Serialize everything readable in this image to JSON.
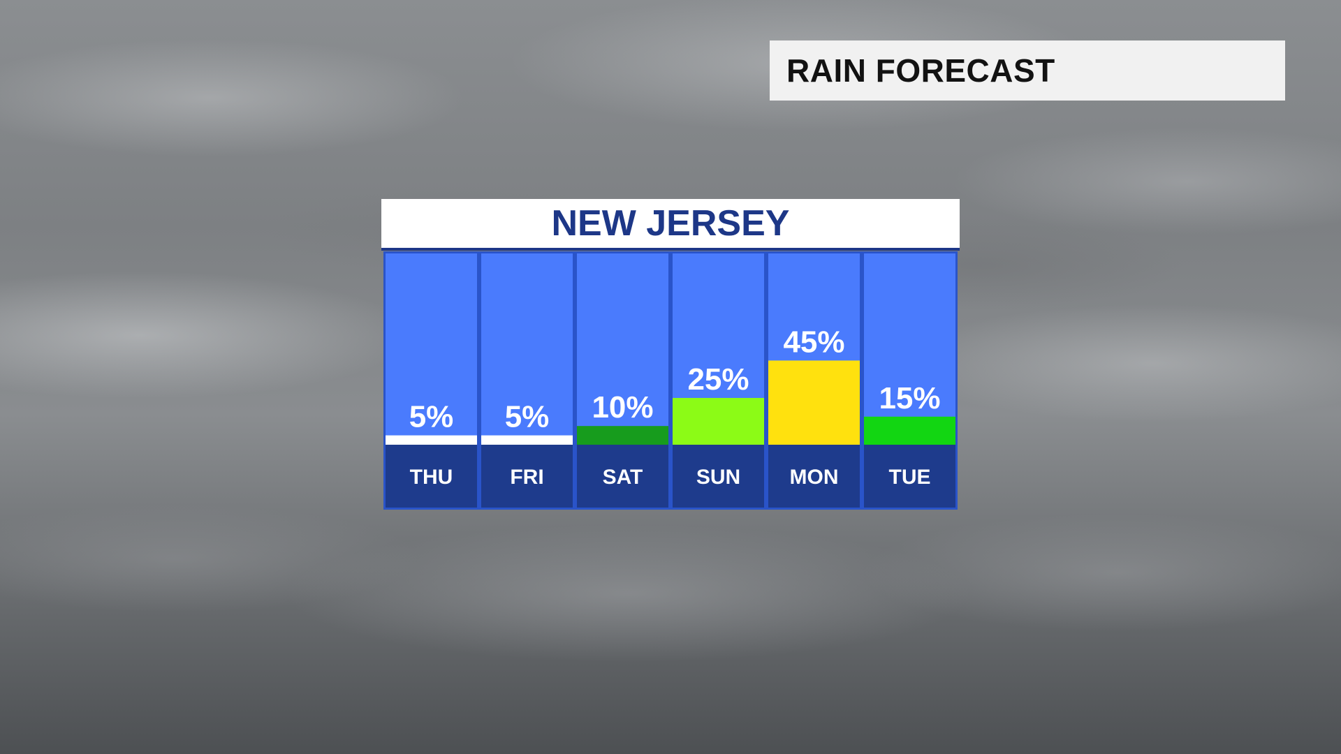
{
  "header": {
    "title": "RAIN FORECAST"
  },
  "panel": {
    "title": "NEW JERSEY"
  },
  "colors": {
    "column_background": "#4a7bfd",
    "day_background": "#1e3b8c",
    "panel_title": "#1d3787"
  },
  "chart_data": {
    "type": "bar",
    "title": "NEW JERSEY",
    "categories": [
      "THU",
      "FRI",
      "SAT",
      "SUN",
      "MON",
      "TUE"
    ],
    "values": [
      5,
      5,
      10,
      25,
      45,
      15
    ],
    "value_labels": [
      "5%",
      "5%",
      "10%",
      "25%",
      "45%",
      "15%"
    ],
    "bar_colors": [
      "#ffffff",
      "#ffffff",
      "#179c1d",
      "#8cfb16",
      "#ffe10e",
      "#12d612"
    ],
    "unit": "%",
    "ylim": [
      0,
      100
    ],
    "grid": false
  }
}
